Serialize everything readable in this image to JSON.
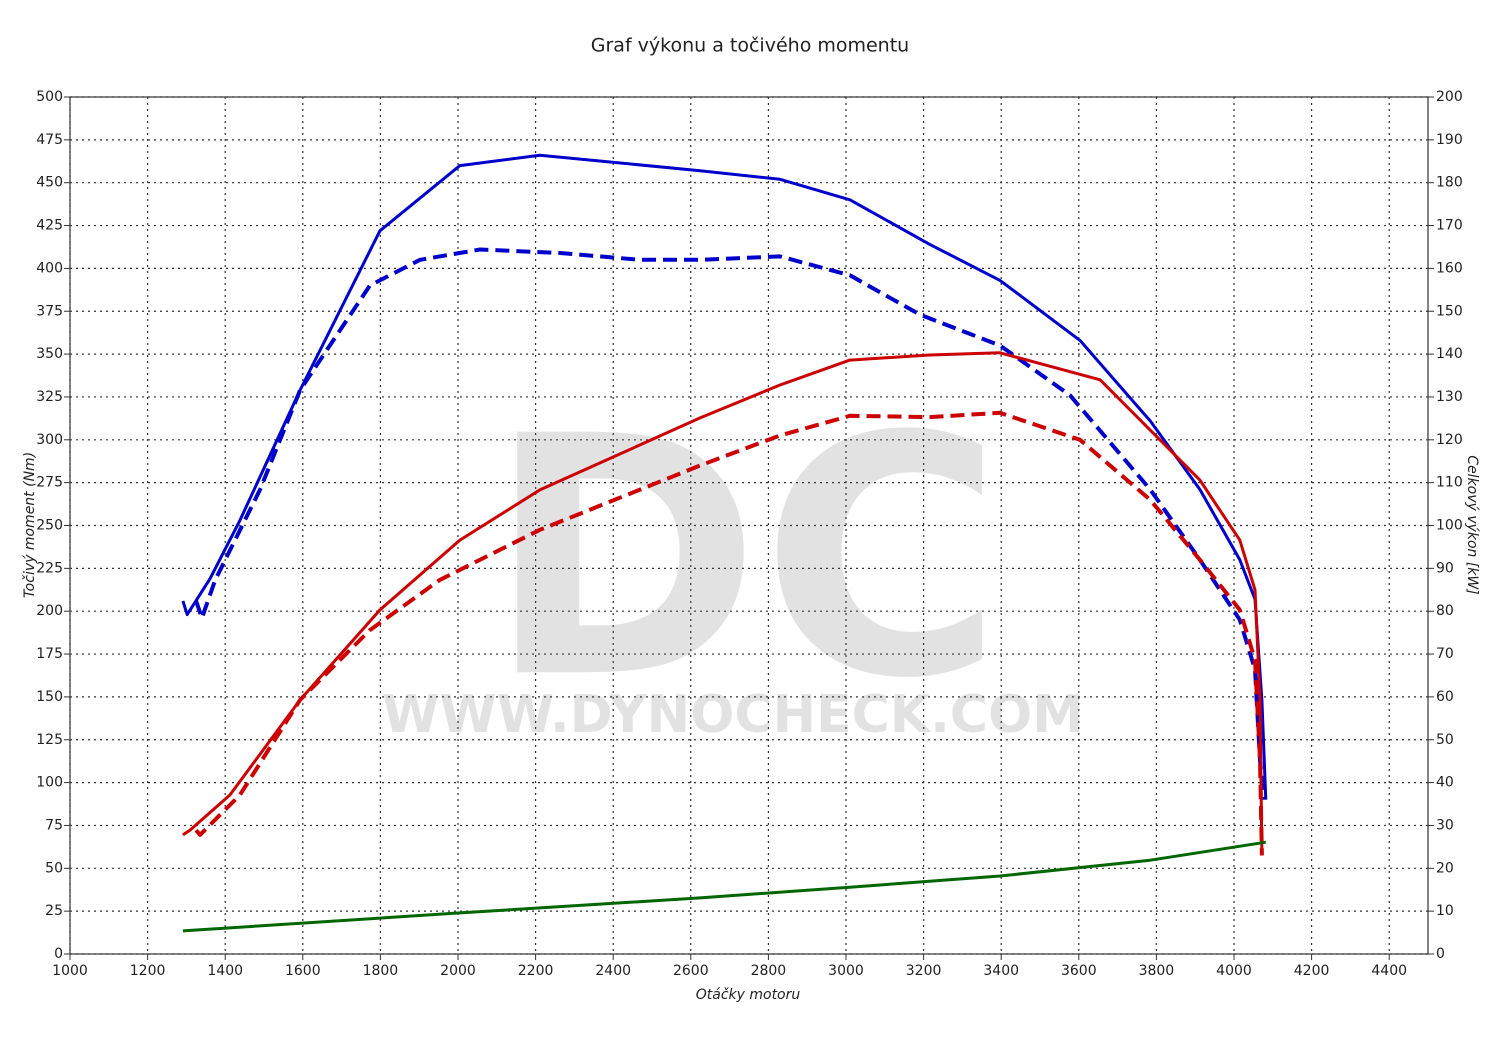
{
  "chart_data": {
    "type": "line",
    "title": "Graf výkonu a točivého momentu",
    "xlabel": "Otáčky motoru",
    "ylabel": "Točivý moment (Nm)",
    "y2label": "Celkový výkon [kW]",
    "watermark": {
      "logo": "DC",
      "url": "WWW.DYNOCHECK.COM"
    },
    "xlim": [
      1000,
      4500
    ],
    "xticks": [
      1000,
      1200,
      1400,
      1600,
      1800,
      2000,
      2200,
      2400,
      2600,
      2800,
      3000,
      3200,
      3400,
      3600,
      3800,
      4000,
      4200,
      4400
    ],
    "ylim": [
      0,
      500
    ],
    "yticks": [
      0,
      25,
      50,
      75,
      100,
      125,
      150,
      175,
      200,
      225,
      250,
      275,
      300,
      325,
      350,
      375,
      400,
      425,
      450,
      475,
      500
    ],
    "y2lim": [
      0,
      200
    ],
    "y2ticks": [
      0,
      10,
      20,
      30,
      40,
      50,
      60,
      70,
      80,
      90,
      100,
      110,
      120,
      130,
      140,
      150,
      160,
      170,
      180,
      190,
      200
    ],
    "grid": true,
    "series": [
      {
        "color": "#0000cc",
        "dash": false,
        "axis": "y",
        "x": [
          1291,
          1302,
          1361,
          1438,
          1593,
          1799,
          2005,
          2211,
          2624,
          2830,
          3010,
          3216,
          3397,
          3603,
          3784,
          3912,
          4015,
          4054,
          4072,
          4082
        ],
        "values": [
          206,
          198,
          219,
          253,
          329,
          422,
          460,
          466,
          457,
          452,
          440,
          414,
          393,
          358,
          311,
          271,
          230,
          207,
          148,
          90
        ]
      },
      {
        "color": "#0000cc",
        "dash": true,
        "axis": "y",
        "x": [
          1325,
          1340,
          1374,
          1490,
          1593,
          1773,
          1902,
          2057,
          2263,
          2469,
          2624,
          2830,
          3010,
          3191,
          3397,
          3577,
          3784,
          3912,
          4015,
          4054,
          4067,
          4077
        ],
        "values": [
          206,
          196,
          218,
          271,
          329,
          390,
          405,
          411,
          409,
          405,
          405,
          407,
          396,
          373,
          355,
          326,
          271,
          230,
          195,
          166,
          113,
          90
        ]
      },
      {
        "color": "#cc0000",
        "dash": false,
        "axis": "y2",
        "x": [
          1291,
          1309,
          1412,
          1593,
          1799,
          2005,
          2211,
          2624,
          2830,
          3010,
          3216,
          3397,
          3655,
          3809,
          3912,
          4015,
          4054,
          4067,
          4072
        ],
        "values": [
          27.8,
          28.9,
          37.1,
          59.3,
          80.3,
          96.6,
          108.3,
          125.1,
          132.8,
          138.6,
          139.8,
          140.3,
          134,
          120,
          110.6,
          96.6,
          85,
          59.3,
          23
        ]
      },
      {
        "color": "#cc0000",
        "dash": true,
        "axis": "y2",
        "x": [
          1325,
          1335,
          1438,
          1593,
          1773,
          1953,
          2211,
          2624,
          2830,
          3010,
          3216,
          3397,
          3603,
          3784,
          3912,
          4015,
          4054,
          4067,
          4072
        ],
        "values": [
          28.9,
          27.8,
          37.1,
          59.3,
          75.6,
          87.3,
          99,
          114,
          121,
          125.6,
          125.3,
          126.3,
          120,
          106,
          92,
          80.3,
          68.6,
          45.3,
          23
        ]
      },
      {
        "color": "#006600",
        "dash": false,
        "axis": "y2",
        "x": [
          1291,
          2005,
          2624,
          3010,
          3397,
          3784,
          4082
        ],
        "values": [
          5.4,
          9.6,
          13.1,
          15.6,
          18.2,
          21.9,
          26.1
        ]
      }
    ]
  }
}
